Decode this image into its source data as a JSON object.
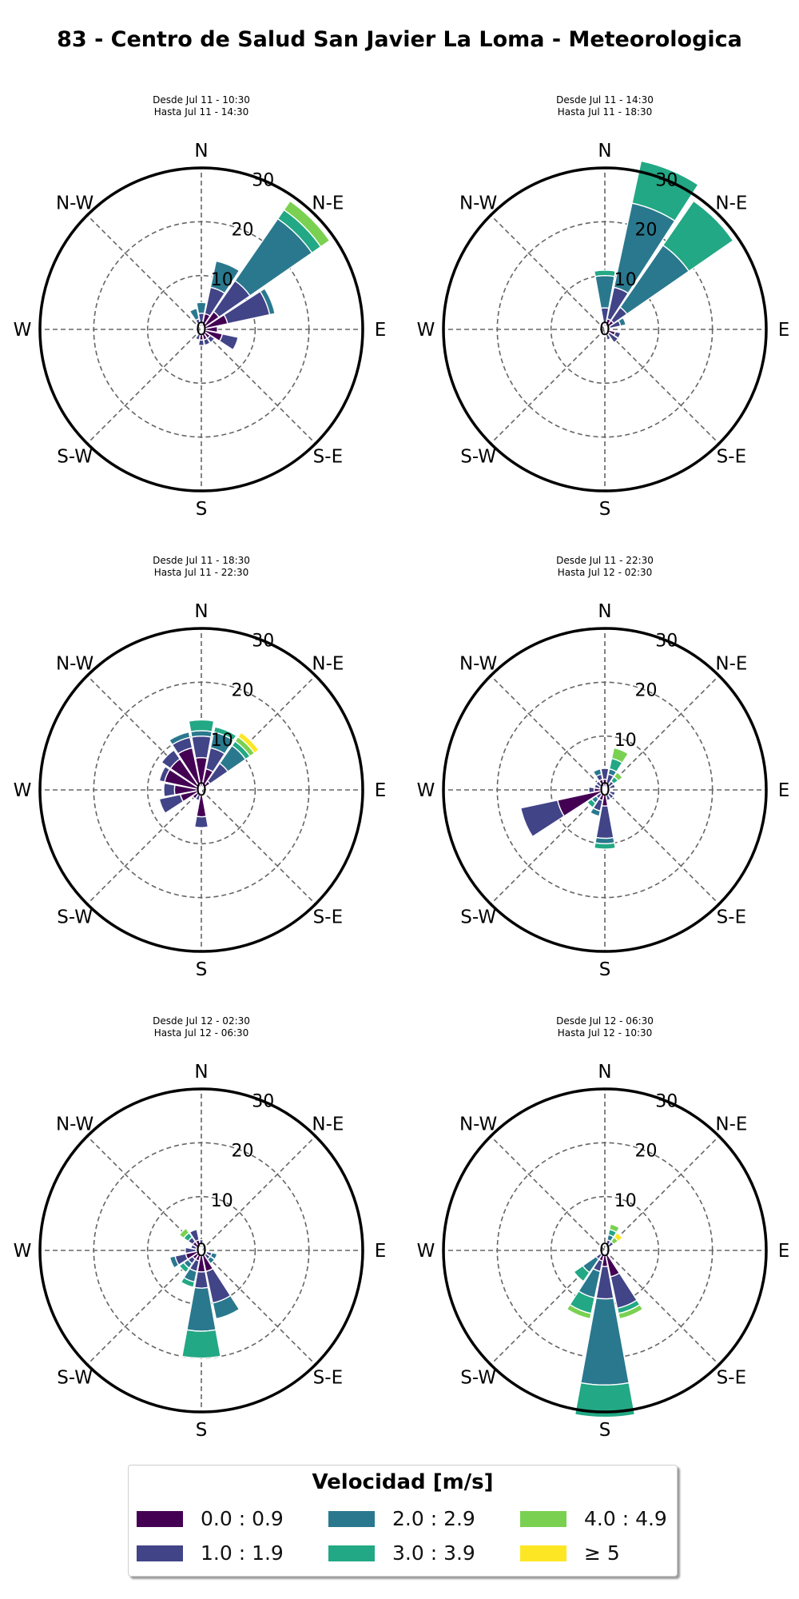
{
  "title": "83 - Centro de Salud San Javier La Loma - Meteorologica",
  "directions": [
    "N",
    "N-E",
    "E",
    "S-E",
    "S",
    "S-W",
    "W",
    "N-W"
  ],
  "radial_labels": [
    "0",
    "10",
    "20",
    "30"
  ],
  "legend": {
    "title": "Velocidad [m/s]",
    "bins": [
      {
        "label": "0.0 : 0.9",
        "color": "#440154"
      },
      {
        "label": "1.0 : 1.9",
        "color": "#414487"
      },
      {
        "label": "2.0 : 2.9",
        "color": "#2a788e"
      },
      {
        "label": "3.0 : 3.9",
        "color": "#22a884"
      },
      {
        "label": "4.0 : 4.9",
        "color": "#7ad151"
      },
      {
        "label": "≥  5",
        "color": "#fde725"
      }
    ]
  },
  "chart_data": [
    {
      "type": "windrose",
      "subtitle_1": "Desde Jul 11 - 10:30",
      "subtitle_2": "Hasta Jul 11 - 14:30",
      "rlim": [
        0,
        30
      ],
      "rticks": [
        0,
        10,
        20,
        30
      ],
      "direction_deg": [
        0,
        22.5,
        45,
        67.5,
        90,
        112.5,
        135,
        157.5,
        180,
        202.5,
        225,
        247.5,
        270,
        292.5,
        315,
        337.5
      ],
      "series": [
        {
          "values": [
            1,
            3,
            4,
            5,
            3,
            4,
            2,
            2,
            2,
            1,
            0,
            0,
            0,
            0,
            0,
            1
          ]
        },
        {
          "values": [
            2,
            5,
            7,
            8,
            0,
            3,
            1,
            1,
            1,
            1,
            0,
            0,
            0,
            0,
            0,
            1
          ]
        },
        {
          "values": [
            2,
            5,
            14,
            1,
            0,
            0,
            0,
            0,
            0,
            0,
            0,
            0,
            0,
            0,
            0,
            2
          ]
        },
        {
          "values": [
            0,
            0,
            2,
            0,
            0,
            0,
            0,
            0,
            0,
            0,
            0,
            0,
            0,
            0,
            0,
            0
          ]
        },
        {
          "values": [
            0,
            0,
            2,
            0,
            0,
            0,
            0,
            0,
            0,
            0,
            0,
            0,
            0,
            0,
            0,
            0
          ]
        },
        {
          "values": [
            0,
            0,
            0,
            0,
            0,
            0,
            0,
            0,
            0,
            0,
            0,
            0,
            0,
            0,
            0,
            0
          ]
        }
      ]
    },
    {
      "type": "windrose",
      "subtitle_1": "Desde Jul 11 - 14:30",
      "subtitle_2": "Hasta Jul 11 - 18:30",
      "rlim": [
        0,
        30
      ],
      "rticks": [
        0,
        10,
        20,
        30
      ],
      "direction_deg": [
        0,
        22.5,
        45,
        67.5,
        90,
        112.5,
        135,
        157.5,
        180,
        202.5,
        225,
        247.5,
        270,
        292.5,
        315,
        337.5
      ],
      "series": [
        {
          "values": [
            1,
            2,
            2,
            1,
            0,
            2,
            1,
            1,
            0,
            0,
            0,
            0,
            0,
            0,
            0,
            0
          ]
        },
        {
          "values": [
            3,
            6,
            3,
            2,
            0,
            1,
            2,
            1,
            0,
            0,
            0,
            0,
            0,
            0,
            0,
            0
          ]
        },
        {
          "values": [
            6,
            16,
            14,
            1,
            0,
            0,
            0,
            0,
            0,
            0,
            0,
            0,
            0,
            0,
            0,
            0
          ]
        },
        {
          "values": [
            1,
            8,
            10,
            0,
            0,
            0,
            0,
            0,
            0,
            0,
            0,
            0,
            0,
            0,
            0,
            0
          ]
        },
        {
          "values": [
            0,
            0,
            0,
            0,
            0,
            0,
            0,
            0,
            0,
            0,
            0,
            0,
            0,
            0,
            0,
            0
          ]
        },
        {
          "values": [
            0,
            0,
            0,
            0,
            0,
            0,
            0,
            0,
            0,
            0,
            0,
            0,
            0,
            0,
            0,
            0
          ]
        }
      ]
    },
    {
      "type": "windrose",
      "subtitle_1": "Desde Jul 11 - 18:30",
      "subtitle_2": "Hasta Jul 11 - 22:30",
      "rlim": [
        0,
        30
      ],
      "rticks": [
        0,
        10,
        20,
        30
      ],
      "direction_deg": [
        0,
        22.5,
        45,
        67.5,
        90,
        112.5,
        135,
        157.5,
        180,
        202.5,
        225,
        247.5,
        270,
        292.5,
        315,
        337.5
      ],
      "series": [
        {
          "values": [
            6,
            4,
            2,
            0,
            0,
            0,
            0,
            0,
            5,
            1,
            2,
            4,
            5,
            7,
            7,
            8
          ]
        },
        {
          "values": [
            4,
            4,
            4,
            0,
            0,
            0,
            0,
            0,
            2,
            1,
            0,
            4,
            2,
            1,
            2,
            2
          ]
        },
        {
          "values": [
            1,
            3,
            4,
            0,
            0,
            0,
            0,
            0,
            0,
            0,
            0,
            0,
            0,
            0,
            0,
            1
          ]
        },
        {
          "values": [
            2,
            1,
            1,
            0,
            0,
            0,
            0,
            0,
            0,
            0,
            0,
            0,
            0,
            0,
            0,
            0
          ]
        },
        {
          "values": [
            0,
            0,
            1,
            0,
            0,
            0,
            0,
            0,
            0,
            0,
            0,
            0,
            0,
            0,
            0,
            0
          ]
        },
        {
          "values": [
            0,
            0,
            1,
            0,
            0,
            0,
            0,
            0,
            0,
            0,
            0,
            0,
            0,
            0,
            0,
            0
          ]
        }
      ]
    },
    {
      "type": "windrose",
      "subtitle_1": "Desde Jul 11 - 22:30",
      "subtitle_2": "Hasta Jul 12 - 02:30",
      "rlim": [
        0,
        30
      ],
      "rticks": [
        0,
        10,
        20,
        30
      ],
      "direction_deg": [
        0,
        22.5,
        45,
        67.5,
        90,
        112.5,
        135,
        157.5,
        180,
        202.5,
        225,
        247.5,
        270,
        292.5,
        315,
        337.5
      ],
      "series": [
        {
          "values": [
            2,
            1,
            1,
            1,
            1,
            1,
            1,
            1,
            3,
            2,
            1,
            9,
            2,
            1,
            1,
            2
          ]
        },
        {
          "values": [
            2,
            2,
            1,
            1,
            0,
            1,
            1,
            1,
            6,
            2,
            1,
            7,
            1,
            1,
            1,
            1
          ]
        },
        {
          "values": [
            0,
            1,
            0,
            0,
            0,
            0,
            0,
            0,
            1,
            1,
            1,
            0,
            0,
            0,
            0,
            1
          ]
        },
        {
          "values": [
            0,
            2,
            1,
            0,
            0,
            0,
            0,
            0,
            1,
            0,
            1,
            0,
            0,
            0,
            0,
            0
          ]
        },
        {
          "values": [
            0,
            2,
            1,
            0,
            0,
            0,
            0,
            0,
            0,
            0,
            0,
            0,
            0,
            0,
            0,
            0
          ]
        },
        {
          "values": [
            0,
            0,
            0,
            0,
            0,
            0,
            0,
            0,
            0,
            0,
            0,
            0,
            0,
            0,
            0,
            0
          ]
        }
      ]
    },
    {
      "type": "windrose",
      "subtitle_1": "Desde Jul 12 - 02:30",
      "subtitle_2": "Hasta Jul 12 - 06:30",
      "rlim": [
        0,
        30
      ],
      "rticks": [
        0,
        10,
        20,
        30
      ],
      "direction_deg": [
        0,
        22.5,
        45,
        67.5,
        90,
        112.5,
        135,
        157.5,
        180,
        202.5,
        225,
        247.5,
        270,
        292.5,
        315,
        337.5
      ],
      "series": [
        {
          "values": [
            1,
            1,
            0,
            0,
            0,
            1,
            1,
            4,
            4,
            2,
            2,
            3,
            1,
            1,
            2,
            2
          ]
        },
        {
          "values": [
            1,
            0,
            0,
            0,
            0,
            1,
            1,
            6,
            3,
            2,
            1,
            2,
            2,
            1,
            1,
            2
          ]
        },
        {
          "values": [
            0,
            0,
            0,
            0,
            0,
            1,
            1,
            3,
            8,
            2,
            1,
            1,
            0,
            0,
            0,
            0
          ]
        },
        {
          "values": [
            0,
            0,
            0,
            0,
            0,
            0,
            0,
            0,
            5,
            1,
            1,
            0,
            0,
            0,
            1,
            0
          ]
        },
        {
          "values": [
            0,
            0,
            0,
            0,
            0,
            0,
            0,
            0,
            0,
            0,
            0,
            0,
            0,
            0,
            1,
            0
          ]
        },
        {
          "values": [
            0,
            0,
            0,
            0,
            0,
            0,
            0,
            0,
            0,
            0,
            0,
            0,
            0,
            0,
            0,
            0
          ]
        }
      ]
    },
    {
      "type": "windrose",
      "subtitle_1": "Desde Jul 12 - 06:30",
      "subtitle_2": "Hasta Jul 12 - 10:30",
      "rlim": [
        0,
        30
      ],
      "rticks": [
        0,
        10,
        20,
        30
      ],
      "direction_deg": [
        0,
        22.5,
        45,
        67.5,
        90,
        112.5,
        135,
        157.5,
        180,
        202.5,
        225,
        247.5,
        270,
        292.5,
        315,
        337.5
      ],
      "series": [
        {
          "values": [
            0,
            1,
            1,
            1,
            0,
            0,
            1,
            5,
            3,
            2,
            1,
            0,
            0,
            0,
            0,
            0
          ]
        },
        {
          "values": [
            0,
            1,
            1,
            0,
            0,
            0,
            0,
            6,
            6,
            2,
            1,
            0,
            0,
            0,
            0,
            0
          ]
        },
        {
          "values": [
            0,
            1,
            0,
            0,
            0,
            0,
            0,
            0,
            16,
            5,
            3,
            0,
            0,
            0,
            0,
            0
          ]
        },
        {
          "values": [
            0,
            1,
            0,
            0,
            0,
            0,
            0,
            1,
            6,
            3,
            2,
            0,
            0,
            0,
            0,
            0
          ]
        },
        {
          "values": [
            0,
            1,
            1,
            0,
            0,
            0,
            0,
            1,
            0,
            1,
            0,
            0,
            0,
            0,
            0,
            0
          ]
        },
        {
          "values": [
            0,
            0,
            1,
            0,
            0,
            0,
            0,
            0,
            0,
            0,
            0,
            0,
            0,
            0,
            0,
            0
          ]
        }
      ]
    }
  ]
}
